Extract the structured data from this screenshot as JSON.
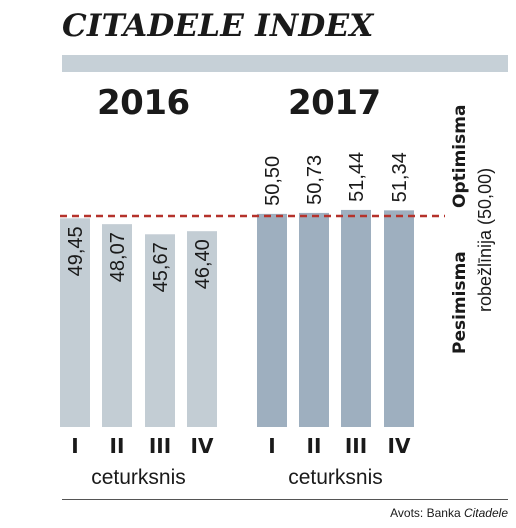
{
  "title": "CITADELE INDEX",
  "colors": {
    "band": "#c6d0d7",
    "bar_2016": "#c3cdd4",
    "bar_2017": "#9eafbf",
    "dashed_line": "#b5322b"
  },
  "side_labels": {
    "pessimism": "Pesimisma",
    "optimism": "Optimisma",
    "baseline": "robežlīnija (50,00)"
  },
  "source": {
    "prefix": "Avots: Banka ",
    "name": "Citadele"
  },
  "chart_data": {
    "type": "bar",
    "baseline": 50.0,
    "groups": [
      {
        "year": "2016",
        "axis_label": "ceturksnis",
        "categories": [
          "I",
          "II",
          "III",
          "IV"
        ],
        "values": [
          49.45,
          48.07,
          45.67,
          46.4
        ],
        "labels": [
          "49,45",
          "48,07",
          "45,67",
          "46,40"
        ]
      },
      {
        "year": "2017",
        "axis_label": "ceturksnis",
        "categories": [
          "I",
          "II",
          "III",
          "IV"
        ],
        "values": [
          50.5,
          50.73,
          51.44,
          51.34
        ],
        "labels": [
          "50,50",
          "50,73",
          "51,44",
          "51,34"
        ]
      }
    ]
  }
}
